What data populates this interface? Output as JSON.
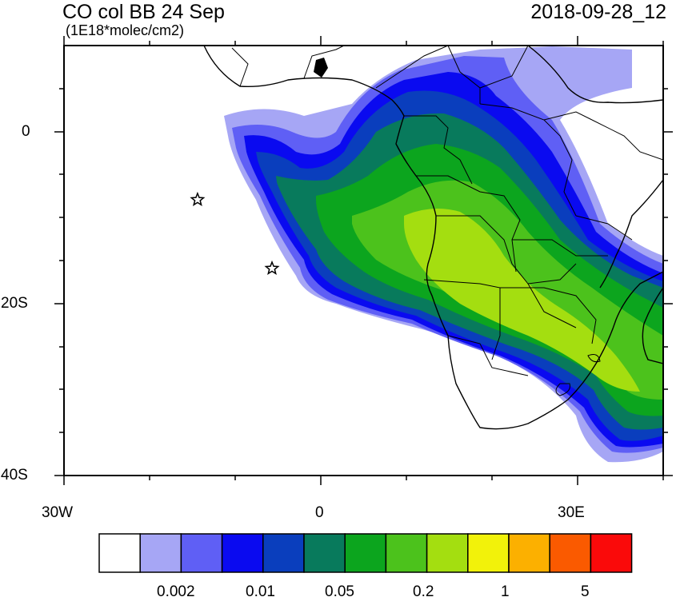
{
  "header": {
    "title": "CO col BB 24 Sep",
    "units": "(1E18*molec/cm2)",
    "timestamp": "2018-09-28_12"
  },
  "axes": {
    "y_ticks": [
      "0",
      "20S",
      "40S"
    ],
    "x_ticks": [
      "30W",
      "0",
      "30E"
    ]
  },
  "markers": [
    {
      "name": "star",
      "lon": -14.4,
      "lat": -7.9
    },
    {
      "name": "star",
      "lon": -5.7,
      "lat": -15.9
    }
  ],
  "colorbar": {
    "colors": [
      "#ffffff",
      "#a6a6f5",
      "#5f5ff5",
      "#0a0af0",
      "#0a3ebd",
      "#087a5c",
      "#0ca51e",
      "#4cc21c",
      "#a4de10",
      "#f2f20a",
      "#fcb000",
      "#fa5a00",
      "#fa0a0a"
    ],
    "labels": [
      "0.002",
      "0.01",
      "0.05",
      "0.2",
      "1",
      "5"
    ]
  },
  "palette": {
    "c1": "#a6a6f5",
    "c2": "#5f5ff5",
    "c3": "#0a0af0",
    "c4": "#0a3ebd",
    "c5": "#087a5c",
    "c6": "#0ca51e",
    "c7": "#4cc21c",
    "c8": "#a4de10"
  }
}
